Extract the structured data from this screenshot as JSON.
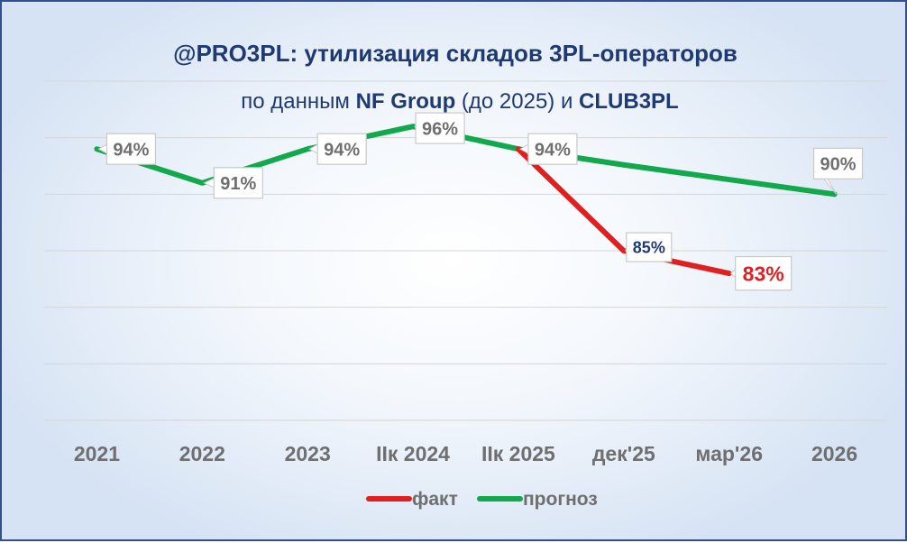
{
  "chart_data": {
    "type": "line",
    "title": {
      "line1_brand": "@PRO3PL:",
      "line1_rest": " утилизация складов 3PL-операторов",
      "line2_pre": "по данным ",
      "line2_src1": "NF Group",
      "line2_mid": " (до 2025) и ",
      "line2_src2": "CLUB3PL"
    },
    "categories": [
      "2021",
      "2022",
      "2023",
      "IIк 2024",
      "IIк 2025",
      "дек'25",
      "мар'26",
      "2026"
    ],
    "ylim": [
      70,
      100
    ],
    "grid": true,
    "legend_position": "bottom",
    "series": [
      {
        "name": "факт",
        "color": "#e02020",
        "values": [
          null,
          null,
          null,
          null,
          94,
          85,
          83,
          null
        ]
      },
      {
        "name": "прогноз",
        "color": "#12a84c",
        "values": [
          94,
          91,
          94,
          96,
          94,
          92.6,
          91.3,
          90
        ]
      }
    ],
    "data_labels": [
      {
        "series": "прогноз",
        "index": 0,
        "text": "94%",
        "color": "#6f6f6f"
      },
      {
        "series": "прогноз",
        "index": 1,
        "text": "91%",
        "color": "#6f6f6f"
      },
      {
        "series": "прогноз",
        "index": 2,
        "text": "94%",
        "color": "#6f6f6f"
      },
      {
        "series": "прогноз",
        "index": 3,
        "text": "96%",
        "color": "#6f6f6f"
      },
      {
        "series": "прогноз",
        "index": 4,
        "text": "94%",
        "color": "#6f6f6f"
      },
      {
        "series": "факт",
        "index": 5,
        "text": "85%",
        "color": "#1f3a73"
      },
      {
        "series": "факт",
        "index": 6,
        "text": "83%",
        "color": "#e02020"
      },
      {
        "series": "прогноз",
        "index": 7,
        "text": "90%",
        "color": "#6f6f6f"
      }
    ]
  }
}
